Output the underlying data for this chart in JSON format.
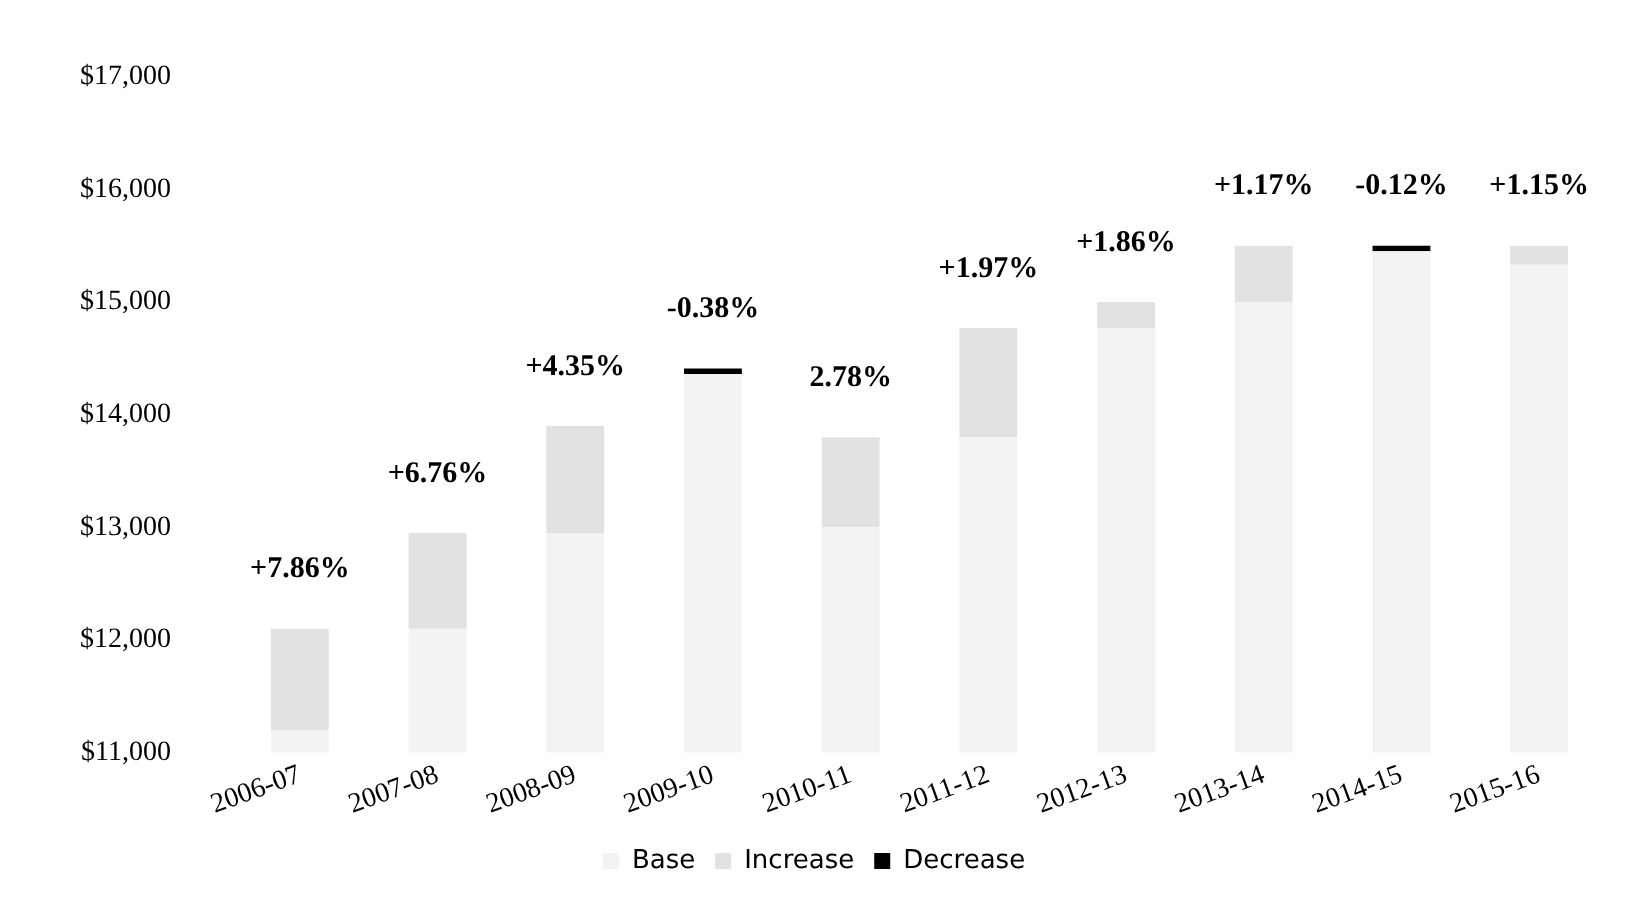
{
  "chart_data": {
    "type": "bar",
    "stacked": true,
    "categories": [
      "2006-07",
      "2007-08",
      "2008-09",
      "2009-10",
      "2010-11",
      "2011-12",
      "2012-13",
      "2013-14",
      "2014-15",
      "2015-16"
    ],
    "series": [
      {
        "name": "Base",
        "color": "#f3f3f3",
        "values": [
          11200,
          12100,
          12950,
          14360,
          13000,
          13800,
          14770,
          15000,
          15450,
          15330
        ]
      },
      {
        "name": "Increase",
        "color": "#e2e2e2",
        "base": [
          11200,
          12100,
          12950,
          null,
          13000,
          13800,
          14770,
          15000,
          null,
          15330
        ],
        "values": [
          900,
          850,
          950,
          null,
          800,
          970,
          230,
          500,
          null,
          170
        ]
      },
      {
        "name": "Decrease",
        "color": "#000000",
        "base": [
          null,
          null,
          null,
          14360,
          null,
          null,
          null,
          null,
          15450,
          null
        ],
        "values": [
          null,
          null,
          null,
          50,
          null,
          null,
          null,
          null,
          50,
          null
        ]
      }
    ],
    "ylim": [
      11000,
      17000
    ],
    "yticks": [
      {
        "value": 11000,
        "label": "$11,000"
      },
      {
        "value": 12000,
        "label": "$12,000"
      },
      {
        "value": 13000,
        "label": "$13,000"
      },
      {
        "value": 14000,
        "label": "$14,000"
      },
      {
        "value": 15000,
        "label": "$15,000"
      },
      {
        "value": 16000,
        "label": "$16,000"
      },
      {
        "value": 17000,
        "label": "$17,000"
      }
    ],
    "annotations": [
      {
        "text": "+7.86%",
        "x": "2006-07",
        "y": 12100
      },
      {
        "text": "+6.76%",
        "x": "2007-08",
        "y": 12950
      },
      {
        "text": "+4.35%",
        "x": "2008-09",
        "y": 13900
      },
      {
        "text": "-0.38%",
        "x": "2009-10",
        "y": 14410
      },
      {
        "text": "2.78%",
        "x": "2010-11",
        "y": 13800
      },
      {
        "text": "+1.97%",
        "x": "2011-12",
        "y": 14770
      },
      {
        "text": "+1.86%",
        "x": "2012-13",
        "y": 15000
      },
      {
        "text": "+1.17%",
        "x": "2013-14",
        "y": 15500
      },
      {
        "text": "-0.12%",
        "x": "2014-15",
        "y": 15500
      },
      {
        "text": "+1.15%",
        "x": "2015-16",
        "y": 15500
      }
    ],
    "grid": false,
    "legend": "bottom"
  }
}
